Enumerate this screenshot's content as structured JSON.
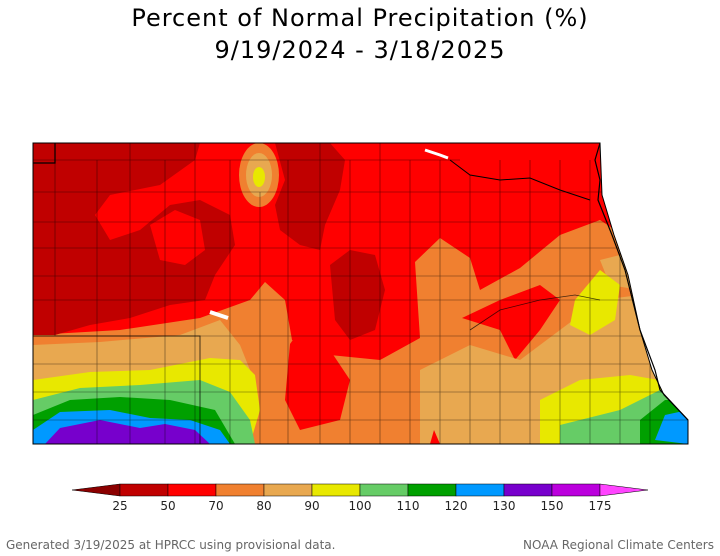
{
  "title": "Percent of Normal Precipitation (%)",
  "subtitle": "9/19/2024 - 3/18/2025",
  "legend": {
    "ticks": [
      "25",
      "50",
      "70",
      "80",
      "90",
      "100",
      "110",
      "120",
      "130",
      "150",
      "175"
    ],
    "colors": {
      "lt25": "#8b0000",
      "b25_50": "#c00000",
      "b50_70": "#ff0000",
      "b70_80": "#f08030",
      "b80_90": "#e8a850",
      "b90_100": "#e8e800",
      "b100_110": "#66cc66",
      "b110_120": "#00a000",
      "b120_130": "#0099ff",
      "b130_150": "#7700cc",
      "b150_175": "#bb00dd",
      "gt175": "#ff44ff"
    }
  },
  "footer": {
    "left": "Generated 3/19/2025 at HPRCC using provisional data.",
    "right": "NOAA Regional Climate Centers"
  }
}
